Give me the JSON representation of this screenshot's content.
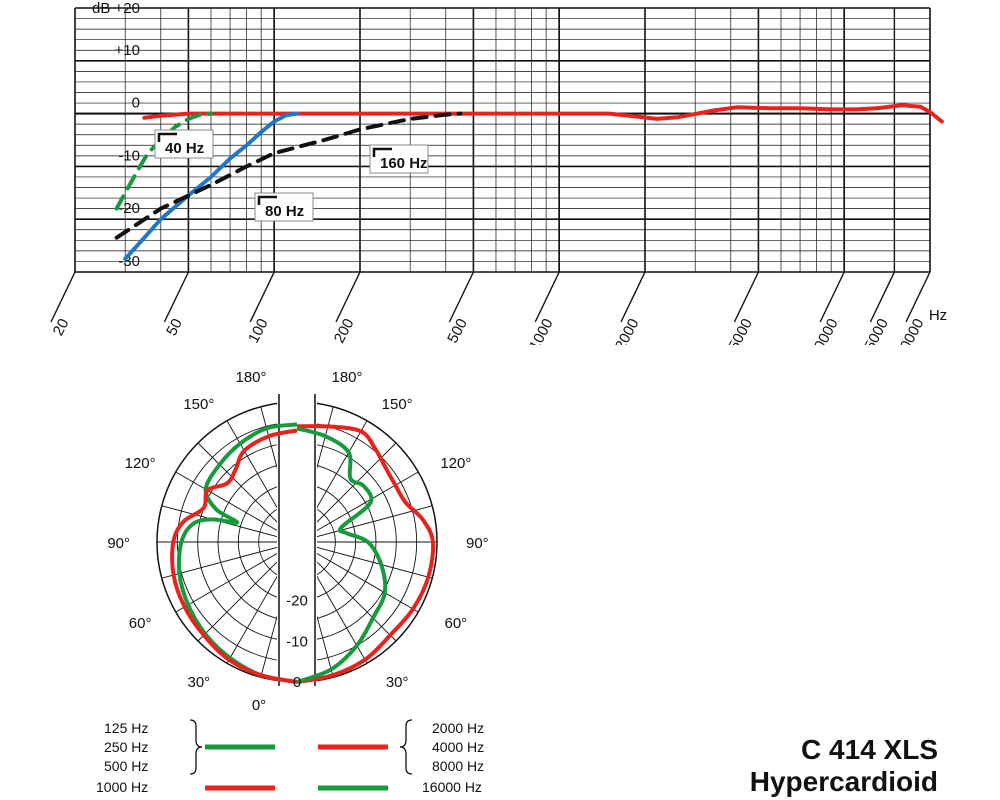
{
  "chart_data": [
    {
      "type": "line",
      "title": "",
      "xlabel": "Hz",
      "ylabel": "dB",
      "x_scale": "log",
      "xlim": [
        20,
        20000
      ],
      "ylim": [
        -30,
        20
      ],
      "x_tick_labels": [
        "20",
        "50",
        "100",
        "200",
        "500",
        "1000",
        "2000",
        "5000",
        "10000",
        "15000",
        "20000"
      ],
      "x_unit_label": "Hz",
      "y_ticks": [
        {
          "value": 20,
          "label": "dB  +20"
        },
        {
          "value": 10,
          "label": "+10"
        },
        {
          "value": 0,
          "label": "0"
        },
        {
          "value": -10,
          "label": "-10"
        },
        {
          "value": -20,
          "label": "-20"
        },
        {
          "value": -30,
          "label": "-30"
        }
      ],
      "grid": true,
      "series": [
        {
          "name": "",
          "color": "#e8231e",
          "style": "solid",
          "points": [
            [
              35,
              -0.8
            ],
            [
              40,
              -0.4
            ],
            [
              50,
              0
            ],
            [
              100,
              0
            ],
            [
              300,
              0
            ],
            [
              1000,
              0
            ],
            [
              1500,
              0
            ],
            [
              1900,
              -0.6
            ],
            [
              2200,
              -1
            ],
            [
              2600,
              -0.7
            ],
            [
              3500,
              0.6
            ],
            [
              4200,
              1.2
            ],
            [
              5500,
              1.0
            ],
            [
              7000,
              1.0
            ],
            [
              9000,
              0.8
            ],
            [
              11000,
              0.8
            ],
            [
              13000,
              1.0
            ],
            [
              16000,
              1.6
            ],
            [
              18500,
              1.3
            ],
            [
              20000,
              0.3
            ],
            [
              22000,
              -1.5
            ]
          ]
        },
        {
          "name": "40 Hz",
          "color": "#159a3c",
          "style": "dashed",
          "points": [
            [
              28,
              -18
            ],
            [
              30,
              -15
            ],
            [
              33,
              -11
            ],
            [
              36,
              -7.5
            ],
            [
              40,
              -5
            ],
            [
              45,
              -2.5
            ],
            [
              50,
              -1
            ],
            [
              55,
              -0.2
            ],
            [
              60,
              0
            ]
          ]
        },
        {
          "name": "80 Hz",
          "color": "#1f77c9",
          "style": "solid",
          "points": [
            [
              30,
              -27.5
            ],
            [
              35,
              -23.5
            ],
            [
              40,
              -20
            ],
            [
              50,
              -15.5
            ],
            [
              60,
              -12
            ],
            [
              70,
              -8.5
            ],
            [
              80,
              -6
            ],
            [
              90,
              -3.5
            ],
            [
              100,
              -1.5
            ],
            [
              110,
              -0.3
            ],
            [
              120,
              0
            ]
          ]
        },
        {
          "name": "160 Hz",
          "color": "#111111",
          "style": "dashed",
          "points": [
            [
              28,
              -23.5
            ],
            [
              40,
              -18
            ],
            [
              60,
              -13.5
            ],
            [
              80,
              -10
            ],
            [
              100,
              -7.5
            ],
            [
              150,
              -5
            ],
            [
              200,
              -3
            ],
            [
              300,
              -1
            ],
            [
              400,
              -0.2
            ],
            [
              450,
              0
            ]
          ]
        }
      ]
    },
    {
      "type": "polar",
      "title": "",
      "angle_labels_left": [
        "180°",
        "150°",
        "120°",
        "90°",
        "60°",
        "30°",
        "0°"
      ],
      "angle_labels_right": [
        "180°",
        "150°",
        "120°",
        "90°",
        "60°",
        "30°"
      ],
      "radial_labels": [
        "-20",
        "-10",
        "0"
      ],
      "rlim": [
        -30,
        0
      ],
      "left_half": {
        "series": [
          {
            "group": [
              "125 Hz",
              "250 Hz",
              "500 Hz"
            ],
            "color": "#159a3c",
            "points": [
              [
                0,
                0
              ],
              [
                15,
                -0.5
              ],
              [
                30,
                -1.5
              ],
              [
                45,
                -2.5
              ],
              [
                60,
                -3.5
              ],
              [
                75,
                -4.5
              ],
              [
                90,
                -6
              ],
              [
                100,
                -8.5
              ],
              [
                105,
                -13
              ],
              [
                108,
                -19
              ],
              [
                112,
                -13
              ],
              [
                120,
                -8.5
              ],
              [
                135,
                -7.5
              ],
              [
                150,
                -6.5
              ],
              [
                165,
                -5.5
              ],
              [
                180,
                -5.5
              ]
            ]
          },
          {
            "group": [
              "1000 Hz"
            ],
            "color": "#e8231e",
            "points": [
              [
                0,
                0
              ],
              [
                15,
                -0.5
              ],
              [
                30,
                -1
              ],
              [
                45,
                -2
              ],
              [
                60,
                -2.5
              ],
              [
                75,
                -3
              ],
              [
                90,
                -4
              ],
              [
                100,
                -6
              ],
              [
                110,
                -10
              ],
              [
                120,
                -9
              ],
              [
                130,
                -12
              ],
              [
                140,
                -11
              ],
              [
                150,
                -8.5
              ],
              [
                165,
                -7.5
              ],
              [
                180,
                -7
              ]
            ]
          }
        ]
      },
      "right_half": {
        "series": [
          {
            "group": [
              "2000 Hz",
              "4000 Hz",
              "8000 Hz"
            ],
            "color": "#e8231e",
            "points": [
              [
                0,
                0
              ],
              [
                15,
                -0.5
              ],
              [
                30,
                -1
              ],
              [
                45,
                -2
              ],
              [
                60,
                -1.5
              ],
              [
                75,
                -1
              ],
              [
                90,
                -1
              ],
              [
                100,
                -3
              ],
              [
                110,
                -6
              ],
              [
                120,
                -6.5
              ],
              [
                130,
                -6
              ],
              [
                140,
                -4.5
              ],
              [
                150,
                -3
              ],
              [
                165,
                -5
              ],
              [
                180,
                -6
              ]
            ]
          },
          {
            "group": [
              "16000 Hz"
            ],
            "color": "#159a3c",
            "points": [
              [
                0,
                0
              ],
              [
                15,
                -2
              ],
              [
                30,
                -5
              ],
              [
                45,
                -8
              ],
              [
                60,
                -9.5
              ],
              [
                75,
                -13
              ],
              [
                90,
                -17
              ],
              [
                100,
                -22
              ],
              [
                108,
                -23
              ],
              [
                118,
                -14
              ],
              [
                130,
                -13
              ],
              [
                140,
                -14
              ],
              [
                150,
                -9
              ],
              [
                165,
                -7.5
              ],
              [
                180,
                -6.5
              ]
            ]
          }
        ]
      }
    }
  ],
  "legend": {
    "left_labels": [
      "125 Hz",
      "250 Hz",
      "500 Hz",
      "1000 Hz"
    ],
    "right_labels": [
      "2000 Hz",
      "4000 Hz",
      "8000 Hz",
      "16000 Hz"
    ],
    "green": "#159a3c",
    "red": "#e8231e"
  },
  "model": {
    "name": "C 414 XLS",
    "pattern": "Hypercardioid"
  }
}
